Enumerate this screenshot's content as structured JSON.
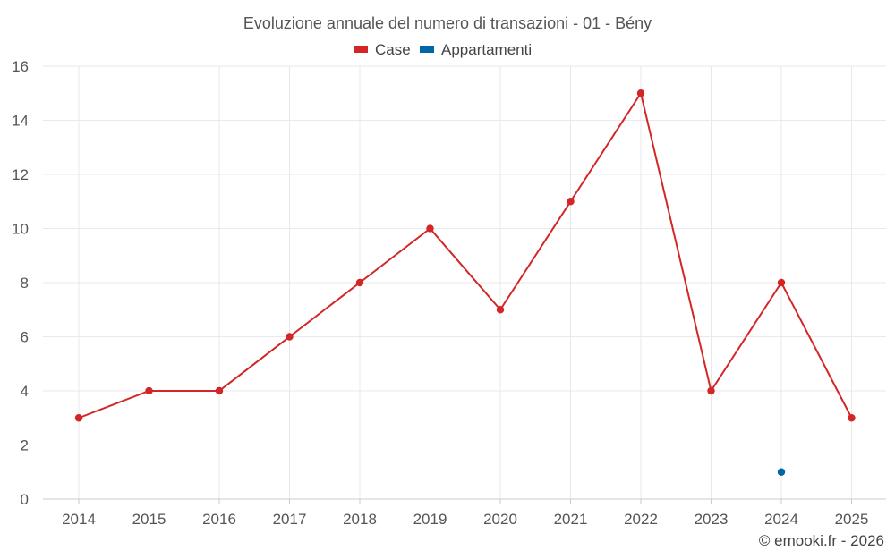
{
  "chart_data": {
    "type": "line",
    "title": "Evoluzione annuale del numero di transazioni - 01 - Bény",
    "categories": [
      "2014",
      "2015",
      "2016",
      "2017",
      "2018",
      "2019",
      "2020",
      "2021",
      "2022",
      "2023",
      "2024",
      "2025"
    ],
    "series": [
      {
        "name": "Case",
        "color": "#d32626",
        "values": [
          3,
          4,
          4,
          6,
          8,
          10,
          7,
          11,
          15,
          4,
          8,
          3
        ]
      },
      {
        "name": "Appartamenti",
        "color": "#0066a6",
        "values": [
          null,
          null,
          null,
          null,
          null,
          null,
          null,
          null,
          null,
          null,
          1,
          null
        ]
      }
    ],
    "ylim": [
      0,
      16
    ],
    "yticks": [
      0,
      2,
      4,
      6,
      8,
      10,
      12,
      14,
      16
    ],
    "grid": true,
    "legend": "top-center"
  },
  "credit": "© emooki.fr - 2026"
}
